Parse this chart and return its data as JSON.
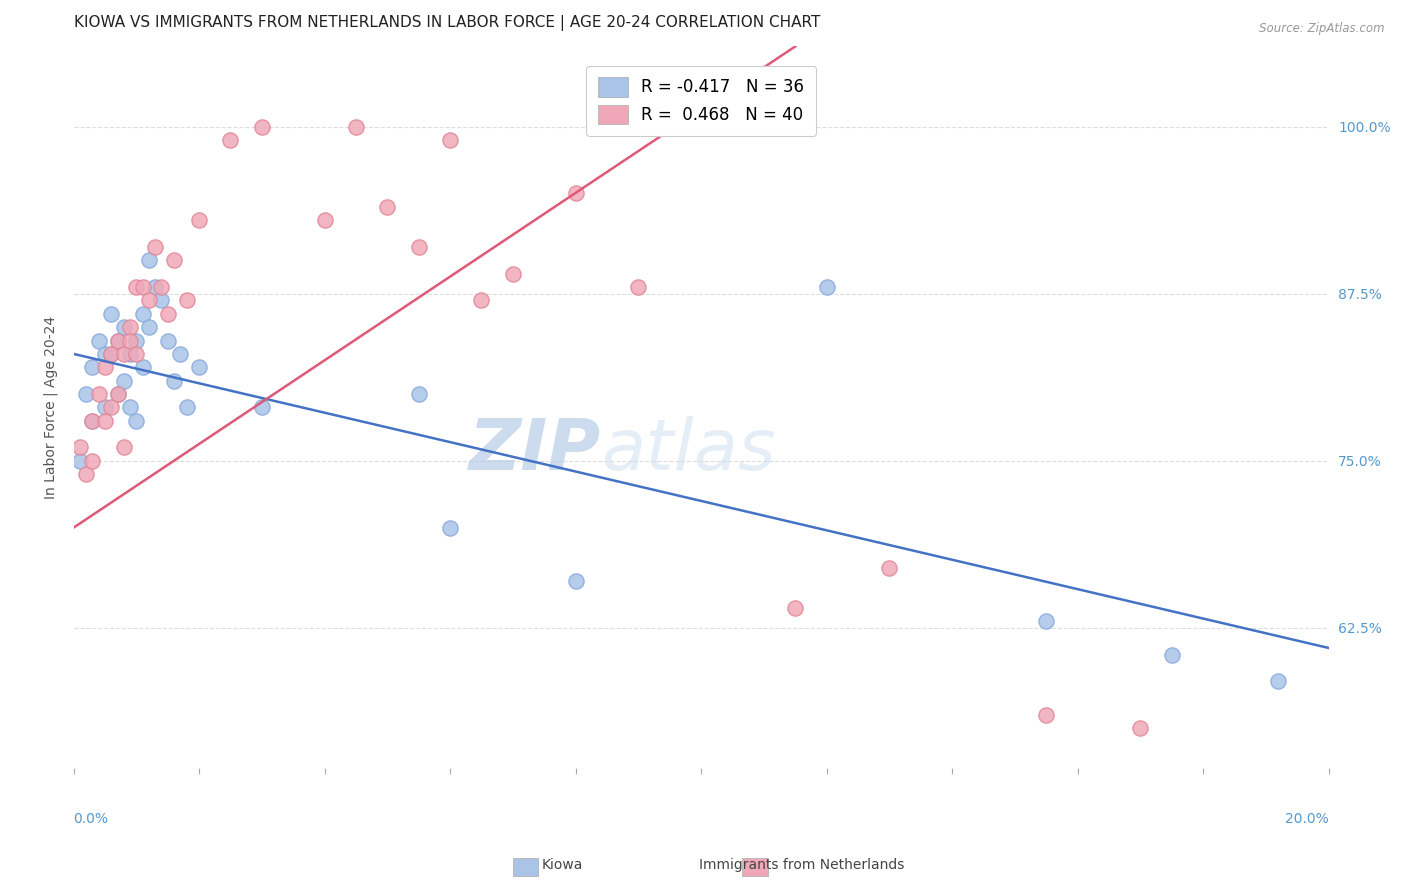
{
  "title": "KIOWA VS IMMIGRANTS FROM NETHERLANDS IN LABOR FORCE | AGE 20-24 CORRELATION CHART",
  "source": "Source: ZipAtlas.com",
  "ylabel": "In Labor Force | Age 20-24",
  "right_yticks": [
    0.625,
    0.75,
    0.875,
    1.0
  ],
  "right_yticklabels": [
    "62.5%",
    "75.0%",
    "87.5%",
    "100.0%"
  ],
  "xmin": 0.0,
  "xmax": 0.2,
  "ymin": 0.52,
  "ymax": 1.06,
  "watermark_zip": "ZIP",
  "watermark_atlas": "atlas",
  "kiowa_color": "#aac4e8",
  "kiowa_edge": "#88aadd",
  "netherlands_color": "#f0a8b8",
  "netherlands_edge": "#e08898",
  "kiowa_line_color": "#4472c4",
  "netherlands_line_color": "#e05878",
  "kiowa_x": [
    0.001,
    0.002,
    0.003,
    0.003,
    0.004,
    0.005,
    0.005,
    0.006,
    0.006,
    0.007,
    0.007,
    0.008,
    0.008,
    0.009,
    0.009,
    0.01,
    0.01,
    0.011,
    0.011,
    0.012,
    0.012,
    0.013,
    0.014,
    0.015,
    0.016,
    0.017,
    0.018,
    0.02,
    0.03,
    0.055,
    0.06,
    0.08,
    0.12,
    0.155,
    0.175,
    0.192
  ],
  "kiowa_y": [
    0.75,
    0.8,
    0.82,
    0.78,
    0.84,
    0.83,
    0.79,
    0.86,
    0.83,
    0.84,
    0.8,
    0.85,
    0.81,
    0.83,
    0.79,
    0.84,
    0.78,
    0.86,
    0.82,
    0.9,
    0.85,
    0.88,
    0.87,
    0.84,
    0.81,
    0.83,
    0.79,
    0.82,
    0.79,
    0.8,
    0.7,
    0.66,
    0.88,
    0.63,
    0.605,
    0.585
  ],
  "netherlands_x": [
    0.001,
    0.002,
    0.003,
    0.003,
    0.004,
    0.005,
    0.005,
    0.006,
    0.006,
    0.007,
    0.007,
    0.008,
    0.008,
    0.009,
    0.009,
    0.01,
    0.01,
    0.011,
    0.012,
    0.013,
    0.014,
    0.015,
    0.016,
    0.018,
    0.02,
    0.025,
    0.03,
    0.04,
    0.045,
    0.05,
    0.055,
    0.06,
    0.065,
    0.07,
    0.08,
    0.09,
    0.115,
    0.13,
    0.155,
    0.17
  ],
  "netherlands_y": [
    0.76,
    0.74,
    0.78,
    0.75,
    0.8,
    0.78,
    0.82,
    0.83,
    0.79,
    0.84,
    0.8,
    0.76,
    0.83,
    0.85,
    0.84,
    0.88,
    0.83,
    0.88,
    0.87,
    0.91,
    0.88,
    0.86,
    0.9,
    0.87,
    0.93,
    0.99,
    1.0,
    0.93,
    1.0,
    0.94,
    0.91,
    0.99,
    0.87,
    0.89,
    0.95,
    0.88,
    0.64,
    0.67,
    0.56,
    0.55
  ],
  "kiowa_line_x0": 0.0,
  "kiowa_line_x1": 0.2,
  "kiowa_line_y0": 0.83,
  "kiowa_line_y1": 0.61,
  "netherlands_line_x0": 0.0,
  "netherlands_line_x1": 0.115,
  "netherlands_line_y0": 0.7,
  "netherlands_line_y1": 1.06,
  "grid_color": "#dddddd",
  "background_color": "#ffffff",
  "title_fontsize": 11,
  "axis_fontsize": 10,
  "tick_fontsize": 10,
  "legend_fontsize": 12
}
